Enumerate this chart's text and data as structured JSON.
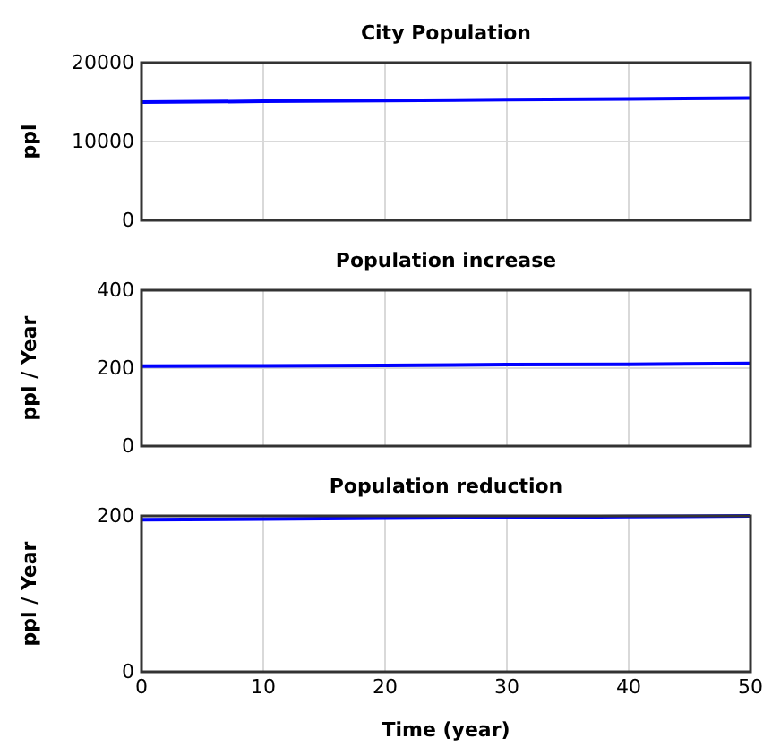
{
  "chart_data": [
    {
      "type": "line",
      "title": "City Population",
      "ylabel": "ppl",
      "x": [
        0,
        10,
        20,
        30,
        40,
        50
      ],
      "series": [
        {
          "color": "#0000ff",
          "values": [
            15000,
            15100,
            15200,
            15300,
            15400,
            15500
          ]
        }
      ],
      "xlim": [
        0,
        50
      ],
      "xticks": [
        0,
        10,
        20,
        30,
        40,
        50
      ],
      "ylim": [
        0,
        20000
      ],
      "yticks": [
        0,
        10000,
        20000
      ],
      "grid": true,
      "tick_labels": "y"
    },
    {
      "type": "line",
      "title": "Population increase",
      "ylabel": "ppl / Year",
      "x": [
        0,
        10,
        20,
        30,
        40,
        50
      ],
      "series": [
        {
          "color": "#0000ff",
          "values": [
            205,
            206,
            207,
            209,
            210,
            212
          ]
        }
      ],
      "xlim": [
        0,
        50
      ],
      "xticks": [
        0,
        10,
        20,
        30,
        40,
        50
      ],
      "ylim": [
        0,
        400
      ],
      "yticks": [
        0,
        200,
        400
      ],
      "grid": true,
      "tick_labels": "y"
    },
    {
      "type": "line",
      "title": "Population reduction",
      "xlabel": "Time (year)",
      "ylabel": "ppl / Year",
      "x": [
        0,
        10,
        20,
        30,
        40,
        50
      ],
      "series": [
        {
          "color": "#0000ff",
          "values": [
            195,
            196,
            197,
            198,
            199,
            200
          ]
        }
      ],
      "xlim": [
        0,
        50
      ],
      "xticks": [
        0,
        10,
        20,
        30,
        40,
        50
      ],
      "ylim": [
        0,
        200
      ],
      "yticks": [
        0,
        200
      ],
      "grid": true
    }
  ]
}
